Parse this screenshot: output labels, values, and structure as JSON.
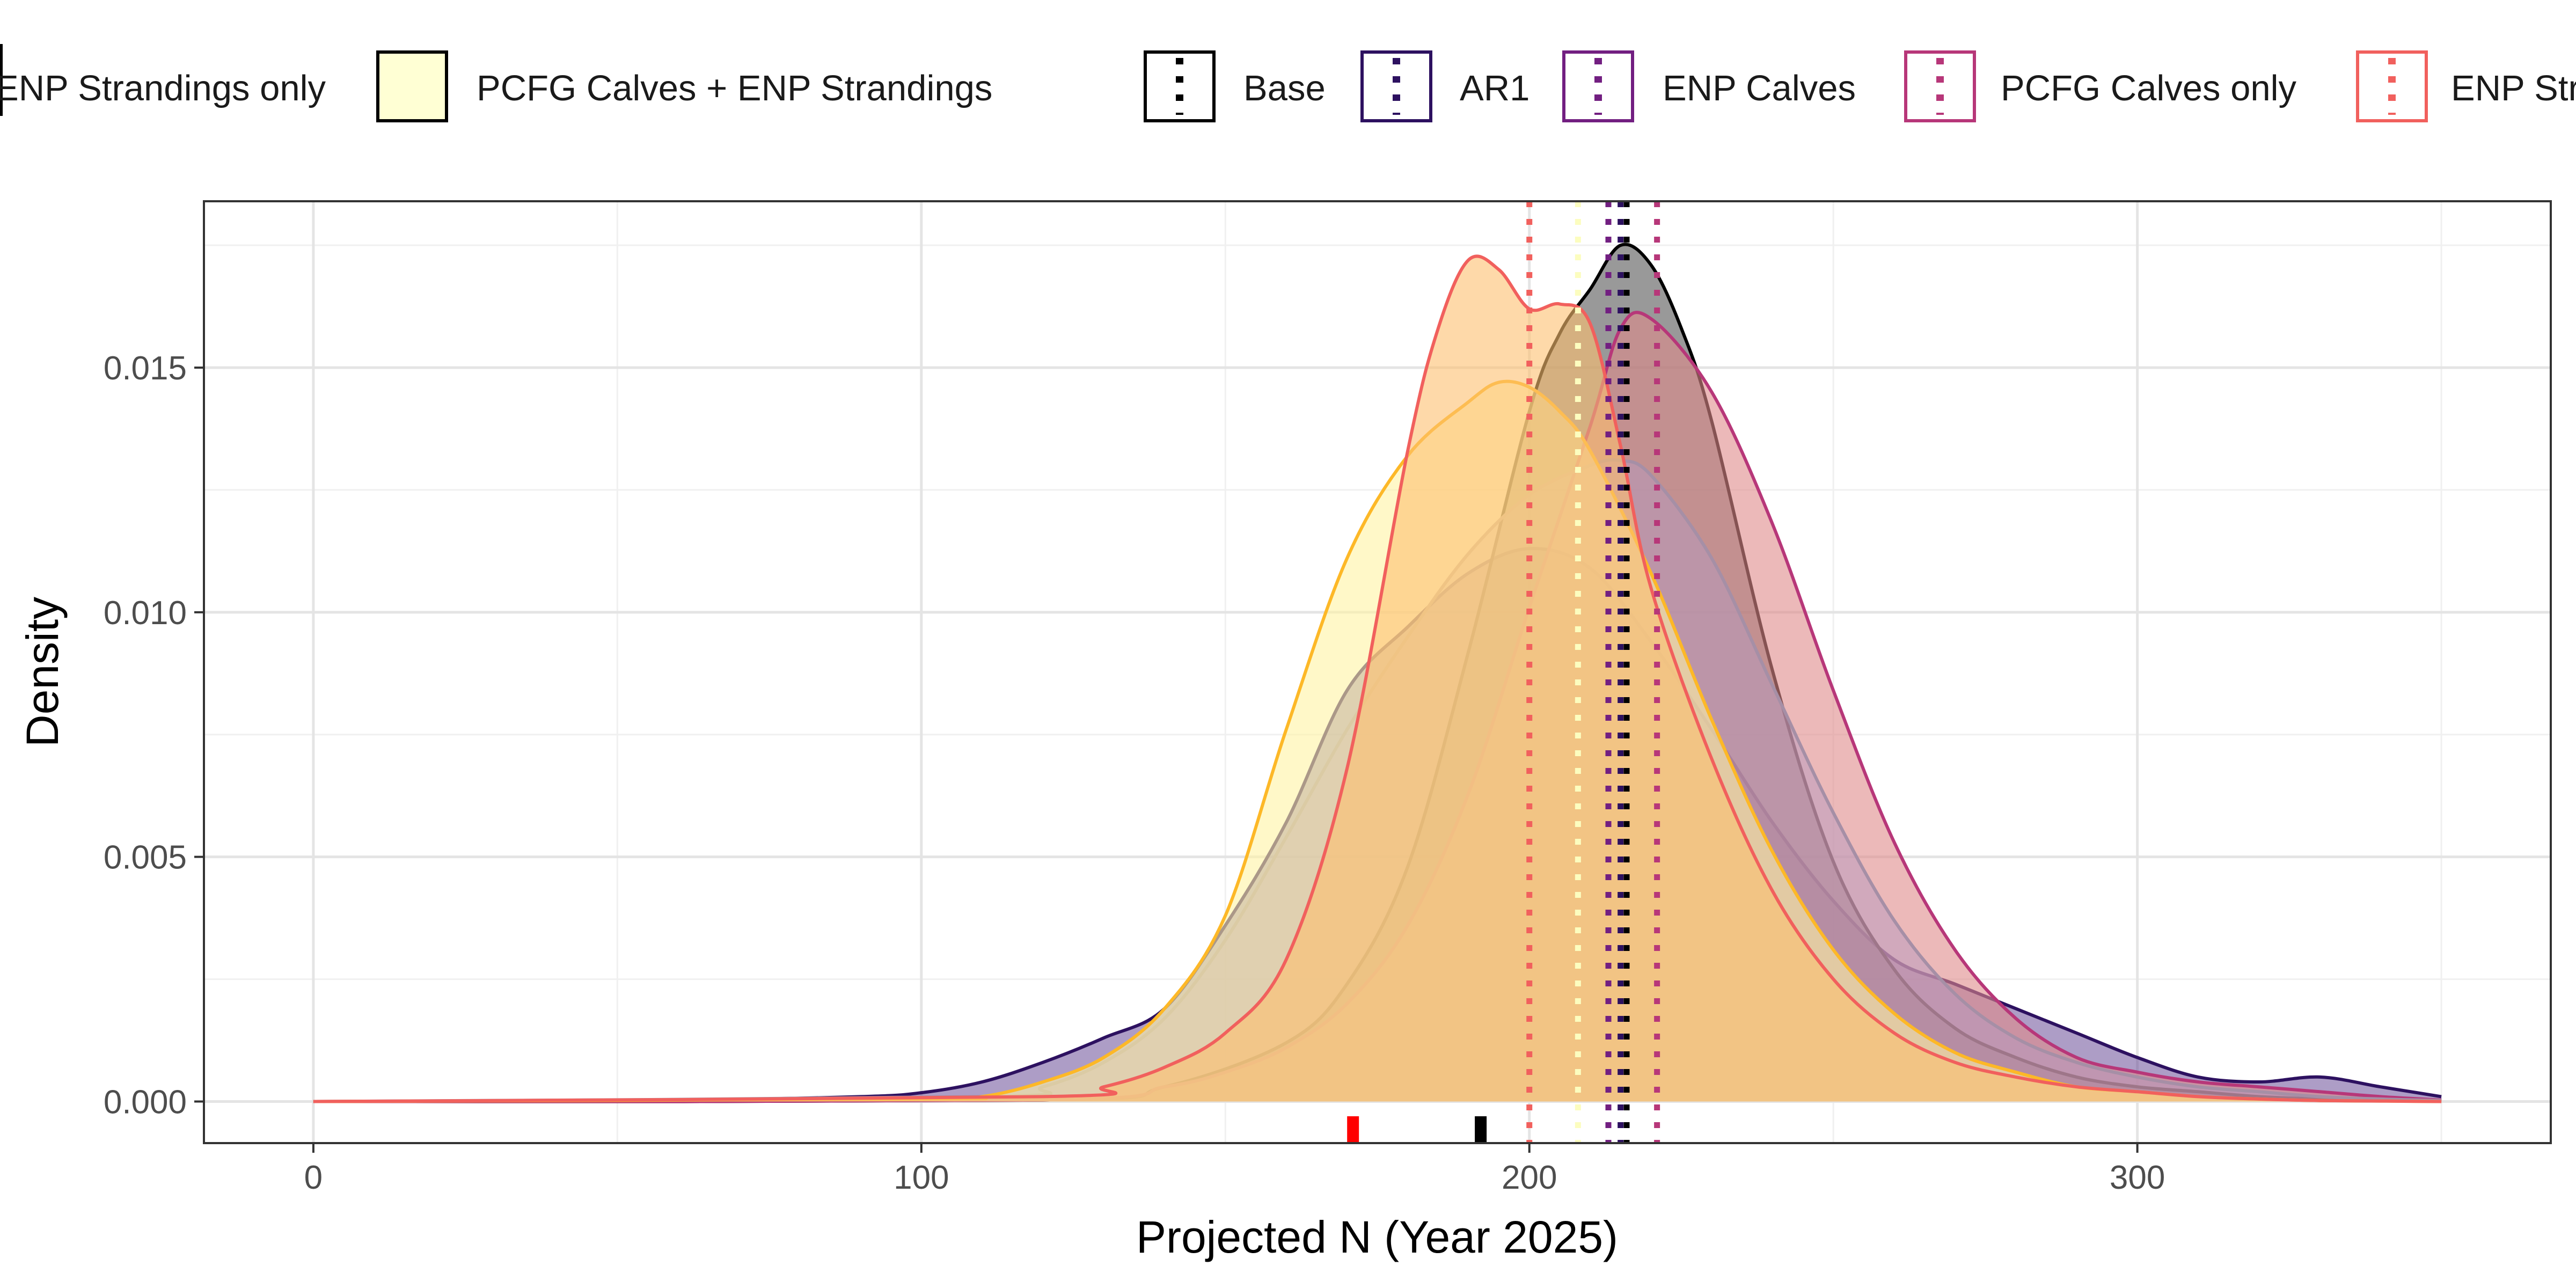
{
  "chart_data": {
    "type": "area",
    "xlabel": "Projected N (Year 2025)",
    "ylabel": "Density",
    "xlim": [
      -18,
      368
    ],
    "ylim": [
      -0.00085,
      0.0184
    ],
    "x_ticks": [
      0,
      100,
      200,
      300
    ],
    "x_tick_labels": [
      "0",
      "100",
      "200",
      "300"
    ],
    "y_ticks": [
      0.0,
      0.005,
      0.01,
      0.015
    ],
    "y_tick_labels": [
      "0.000",
      "0.005",
      "0.010",
      "0.015"
    ],
    "grid": true,
    "legend_position": "top",
    "legend": {
      "fill_entries": [
        {
          "label": "ENP Strandings only",
          "fill": "#fdbf6f"
        },
        {
          "label": "PCFG Calves + ENP Strandings",
          "fill": "#ffffd4"
        }
      ],
      "line_entries": [
        {
          "label": "Base",
          "color": "#000000"
        },
        {
          "label": "AR1",
          "color": "#2d1160"
        },
        {
          "label": "ENP Calves",
          "color": "#721f81"
        },
        {
          "label": "PCFG Calves only",
          "color": "#b73779"
        },
        {
          "label": "ENP Strandings only",
          "color": "#f1605d"
        }
      ]
    },
    "series": [
      {
        "name": "AR1",
        "fill": "#5c3c8e",
        "stroke": "#2d1160",
        "fill_opacity": 0.5,
        "x": [
          0,
          60,
          90,
          100,
          110,
          120,
          130,
          140,
          150,
          160,
          170,
          180,
          190,
          200,
          210,
          220,
          230,
          240,
          250,
          260,
          270,
          280,
          290,
          300,
          310,
          320,
          330,
          340,
          350
        ],
        "y": [
          0,
          3e-05,
          0.0001,
          0.00018,
          0.0004,
          0.0008,
          0.0013,
          0.0019,
          0.0036,
          0.0057,
          0.0084,
          0.0097,
          0.0108,
          0.0113,
          0.0109,
          0.0094,
          0.0076,
          0.0057,
          0.0041,
          0.0029,
          0.0024,
          0.0019,
          0.0014,
          0.0009,
          0.0005,
          0.0004,
          0.0005,
          0.0003,
          0.0001
        ],
        "median": 215
      },
      {
        "name": "Base",
        "fill": "#555555",
        "stroke": "#000000",
        "fill_opacity": 0.6,
        "x": [
          0,
          120,
          140,
          160,
          170,
          180,
          190,
          200,
          205,
          210,
          215,
          220,
          225,
          230,
          240,
          250,
          260,
          270,
          280,
          290,
          300,
          310,
          320,
          330,
          340,
          350
        ],
        "y": [
          0,
          3e-05,
          0.0003,
          0.0012,
          0.0024,
          0.0048,
          0.0092,
          0.0141,
          0.0157,
          0.0166,
          0.0175,
          0.0171,
          0.0158,
          0.0139,
          0.0088,
          0.0049,
          0.0027,
          0.0015,
          0.0009,
          0.0005,
          0.0003,
          0.0002,
          0.0001,
          5e-05,
          2e-05,
          1e-05
        ],
        "median": 216
      },
      {
        "name": "PCFG Calves only",
        "fill": "#e08a8a",
        "stroke": "#b73779",
        "fill_opacity": 0.6,
        "x": [
          0,
          120,
          140,
          150,
          160,
          170,
          180,
          190,
          200,
          210,
          215,
          220,
          230,
          240,
          250,
          260,
          270,
          280,
          290,
          300,
          310,
          320,
          330,
          340,
          350
        ],
        "y": [
          0,
          3e-05,
          0.0003,
          0.0006,
          0.0011,
          0.002,
          0.0036,
          0.0063,
          0.0101,
          0.0138,
          0.0158,
          0.016,
          0.0145,
          0.0118,
          0.0084,
          0.0053,
          0.0031,
          0.0017,
          0.0009,
          0.0006,
          0.0004,
          0.0003,
          0.0002,
          0.0001,
          3e-05
        ],
        "median": 221
      },
      {
        "name": "ENP Calves",
        "fill": "#b69ac0",
        "stroke": "#a68fa6",
        "fill_opacity": 0.5,
        "x": [
          0,
          110,
          120,
          130,
          140,
          150,
          160,
          170,
          180,
          190,
          200,
          210,
          215,
          220,
          230,
          240,
          250,
          260,
          270,
          280,
          290,
          300,
          310,
          320,
          330,
          340,
          350
        ],
        "y": [
          0,
          0.0001,
          0.0003,
          0.0008,
          0.0017,
          0.0033,
          0.0054,
          0.0076,
          0.0095,
          0.0112,
          0.0124,
          0.013,
          0.0131,
          0.0128,
          0.0111,
          0.0085,
          0.0059,
          0.0037,
          0.0022,
          0.0013,
          0.0008,
          0.0005,
          0.0003,
          0.0002,
          0.0001,
          5e-05,
          2e-05
        ],
        "median": 213
      },
      {
        "name": "PCFG Calves + ENP Strandings",
        "fill": "#fff3a3",
        "stroke": "#fdb827",
        "fill_opacity": 0.6,
        "x": [
          0,
          100,
          110,
          120,
          130,
          140,
          150,
          160,
          170,
          180,
          190,
          195,
          200,
          205,
          210,
          220,
          230,
          240,
          250,
          260,
          270,
          280,
          290,
          300,
          310,
          320,
          330,
          340,
          350
        ],
        "y": [
          0,
          5e-05,
          0.0001,
          0.0004,
          0.0009,
          0.0019,
          0.0038,
          0.0076,
          0.0111,
          0.0132,
          0.0143,
          0.0147,
          0.0146,
          0.0141,
          0.0133,
          0.0108,
          0.0078,
          0.0051,
          0.0031,
          0.0018,
          0.001,
          0.0006,
          0.0003,
          0.0002,
          0.0001,
          5e-05,
          2e-05,
          1e-05,
          0
        ],
        "median": 208
      },
      {
        "name": "ENP Strandings only",
        "fill": "#fdbf6f",
        "stroke": "#f1605d",
        "fill_opacity": 0.6,
        "x": [
          0,
          120,
          130,
          140,
          150,
          160,
          170,
          180,
          185,
          190,
          195,
          200,
          205,
          210,
          215,
          220,
          230,
          240,
          250,
          260,
          270,
          280,
          290,
          300,
          310,
          320,
          330,
          340,
          350
        ],
        "y": [
          0,
          0.0001,
          0.0003,
          0.0007,
          0.0014,
          0.0029,
          0.0068,
          0.0133,
          0.0158,
          0.0172,
          0.017,
          0.0162,
          0.0163,
          0.0159,
          0.0134,
          0.0105,
          0.007,
          0.0043,
          0.0025,
          0.0014,
          0.0008,
          0.0005,
          0.0003,
          0.0002,
          0.0001,
          5e-05,
          2e-05,
          1e-05,
          0
        ],
        "median": 200
      }
    ],
    "rug_marks": [
      {
        "x": 171,
        "color": "#ff0000"
      },
      {
        "x": 192,
        "color": "#000000"
      }
    ]
  }
}
